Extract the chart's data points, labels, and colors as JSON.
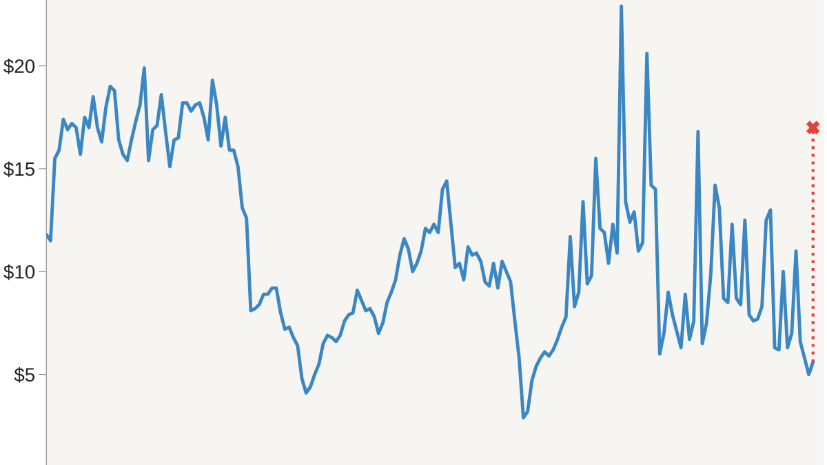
{
  "chart_data": {
    "type": "line",
    "categories": [
      null,
      null,
      null,
      null,
      null,
      null,
      null,
      null,
      null,
      null,
      null,
      null,
      null,
      null,
      null,
      null,
      null,
      null,
      null,
      null,
      null,
      null,
      null,
      null,
      null,
      null,
      null,
      null,
      null,
      null,
      null,
      null,
      null,
      null,
      null,
      null,
      null,
      null,
      null,
      null,
      null,
      null,
      null,
      null,
      null,
      null,
      null,
      null,
      null,
      null,
      null,
      null,
      null,
      null,
      null,
      null,
      null,
      null,
      null,
      null,
      null,
      null,
      null,
      null,
      null,
      null,
      null,
      null,
      null,
      null,
      null,
      null,
      null,
      null,
      null,
      null,
      null,
      null,
      null,
      null,
      null,
      null,
      null,
      null,
      null,
      null,
      null,
      null,
      null,
      null,
      null,
      null,
      null,
      null,
      null,
      null,
      null,
      null,
      null,
      null,
      null,
      null,
      null,
      null,
      null,
      null,
      null,
      null,
      null,
      null,
      null,
      null,
      null,
      null,
      null,
      null,
      null,
      null,
      null,
      null,
      null,
      null,
      null,
      null,
      null,
      null,
      null,
      null,
      null,
      null,
      null,
      null,
      null,
      null,
      null,
      null,
      null,
      null,
      null,
      null,
      null,
      null,
      null,
      null,
      null,
      null,
      null,
      null,
      null,
      null,
      null,
      null,
      null,
      null,
      null,
      null,
      null,
      null,
      null,
      null,
      null,
      null,
      null,
      null,
      null,
      null,
      null,
      null,
      null,
      null,
      null,
      null,
      null,
      null,
      null,
      null,
      null,
      null,
      null,
      null,
      null
    ],
    "series": [
      {
        "color": "#3a87c4",
        "line_style": "solid",
        "values": [
          11.8,
          11.5,
          15.5,
          15.9,
          17.4,
          16.9,
          17.2,
          17.0,
          15.7,
          17.5,
          17.0,
          18.5,
          17.0,
          16.3,
          18.0,
          19.0,
          18.8,
          16.4,
          15.7,
          15.4,
          16.4,
          17.3,
          18.1,
          19.9,
          15.4,
          16.9,
          17.1,
          18.6,
          16.8,
          15.1,
          16.4,
          16.5,
          18.2,
          18.2,
          17.8,
          18.1,
          18.2,
          17.5,
          16.4,
          19.3,
          18.1,
          16.1,
          17.5,
          15.9,
          15.9,
          15.1,
          13.1,
          12.6,
          8.1,
          8.2,
          8.4,
          8.9,
          8.9,
          9.2,
          9.2,
          8.0,
          7.2,
          7.3,
          6.8,
          6.4,
          4.8,
          4.1,
          4.4,
          5.0,
          5.5,
          6.5,
          6.9,
          6.8,
          6.6,
          6.9,
          7.6,
          7.9,
          8.0,
          9.1,
          8.6,
          8.1,
          8.2,
          7.8,
          7.0,
          7.5,
          8.5,
          9.0,
          9.6,
          10.8,
          11.6,
          11.1,
          10.0,
          10.4,
          11.0,
          12.1,
          11.9,
          12.3,
          11.9,
          14.0,
          14.4,
          12.3,
          10.2,
          10.4,
          9.6,
          11.2,
          10.8,
          10.9,
          10.5,
          9.5,
          9.3,
          10.4,
          9.2,
          10.5,
          10.0,
          9.5,
          7.6,
          5.8,
          2.9,
          3.2,
          4.7,
          5.4,
          5.8,
          6.1,
          5.9,
          6.2,
          6.7,
          7.3,
          7.8,
          11.7,
          8.3,
          9.0,
          13.4,
          9.4,
          9.8,
          15.5,
          12.1,
          11.9,
          10.4,
          12.3,
          10.9,
          22.9,
          13.4,
          12.4,
          12.9,
          11.0,
          11.4,
          20.6,
          14.2,
          14.0,
          6.0,
          7.0,
          9.0,
          7.9,
          7.1,
          6.3,
          8.9,
          6.7,
          7.6,
          16.8,
          6.5,
          7.5,
          9.9,
          14.2,
          13.1,
          8.7,
          8.5,
          12.3,
          8.7,
          8.4,
          12.5,
          7.9,
          7.6,
          7.7,
          8.3,
          12.5,
          13.0,
          6.3,
          6.2,
          10.0,
          6.3,
          7.0,
          11.0,
          6.6,
          5.8,
          5.0,
          5.6
        ]
      },
      {
        "type": "scatter",
        "color": "#e0413c",
        "marker": "cross",
        "line_style": "dotted",
        "values": [
          null,
          null,
          null,
          null,
          null,
          null,
          null,
          null,
          null,
          null,
          null,
          null,
          null,
          null,
          null,
          null,
          null,
          null,
          null,
          null,
          null,
          null,
          null,
          null,
          null,
          null,
          null,
          null,
          null,
          null,
          null,
          null,
          null,
          null,
          null,
          null,
          null,
          null,
          null,
          null,
          null,
          null,
          null,
          null,
          null,
          null,
          null,
          null,
          null,
          null,
          null,
          null,
          null,
          null,
          null,
          null,
          null,
          null,
          null,
          null,
          null,
          null,
          null,
          null,
          null,
          null,
          null,
          null,
          null,
          null,
          null,
          null,
          null,
          null,
          null,
          null,
          null,
          null,
          null,
          null,
          null,
          null,
          null,
          null,
          null,
          null,
          null,
          null,
          null,
          null,
          null,
          null,
          null,
          null,
          null,
          null,
          null,
          null,
          null,
          null,
          null,
          null,
          null,
          null,
          null,
          null,
          null,
          null,
          null,
          null,
          null,
          null,
          null,
          null,
          null,
          null,
          null,
          null,
          null,
          null,
          null,
          null,
          null,
          null,
          null,
          null,
          null,
          null,
          null,
          null,
          null,
          null,
          null,
          null,
          null,
          null,
          null,
          null,
          null,
          null,
          null,
          null,
          null,
          null,
          null,
          null,
          null,
          null,
          null,
          null,
          null,
          null,
          null,
          null,
          null,
          null,
          null,
          null,
          null,
          null,
          null,
          null,
          null,
          null,
          null,
          null,
          null,
          null,
          null,
          null,
          null,
          null,
          null,
          null,
          null,
          null,
          null,
          null,
          null,
          null,
          17.0
        ],
        "errors": [
          null,
          null,
          null,
          null,
          null,
          null,
          null,
          null,
          null,
          null,
          null,
          null,
          null,
          null,
          null,
          null,
          null,
          null,
          null,
          null,
          null,
          null,
          null,
          null,
          null,
          null,
          null,
          null,
          null,
          null,
          null,
          null,
          null,
          null,
          null,
          null,
          null,
          null,
          null,
          null,
          null,
          null,
          null,
          null,
          null,
          null,
          null,
          null,
          null,
          null,
          null,
          null,
          null,
          null,
          null,
          null,
          null,
          null,
          null,
          null,
          null,
          null,
          null,
          null,
          null,
          null,
          null,
          null,
          null,
          null,
          null,
          null,
          null,
          null,
          null,
          null,
          null,
          null,
          null,
          null,
          null,
          null,
          null,
          null,
          null,
          null,
          null,
          null,
          null,
          null,
          null,
          null,
          null,
          null,
          null,
          null,
          null,
          null,
          null,
          null,
          null,
          null,
          null,
          null,
          null,
          null,
          null,
          null,
          null,
          null,
          null,
          null,
          null,
          null,
          null,
          null,
          null,
          null,
          null,
          null,
          null,
          null,
          null,
          null,
          null,
          null,
          null,
          null,
          null,
          null,
          null,
          null,
          null,
          null,
          null,
          null,
          null,
          null,
          null,
          null,
          null,
          null,
          null,
          null,
          null,
          null,
          null,
          null,
          null,
          null,
          null,
          null,
          null,
          null,
          null,
          null,
          null,
          null,
          null,
          null,
          null,
          null,
          null,
          null,
          null,
          null,
          null,
          null,
          null,
          null,
          null,
          null,
          null,
          null,
          null,
          null,
          null,
          null,
          null,
          null,
          [
            5.6,
            17.0
          ]
        ]
      }
    ],
    "ylim": [
      0.6,
      23.2
    ],
    "yticks": [
      {
        "value": 5,
        "label": "$5"
      },
      {
        "value": 10,
        "label": "$10"
      },
      {
        "value": 15,
        "label": "$15"
      },
      {
        "value": 20,
        "label": "$20"
      }
    ],
    "grid": false,
    "legend": false,
    "tick_labels": "y"
  }
}
